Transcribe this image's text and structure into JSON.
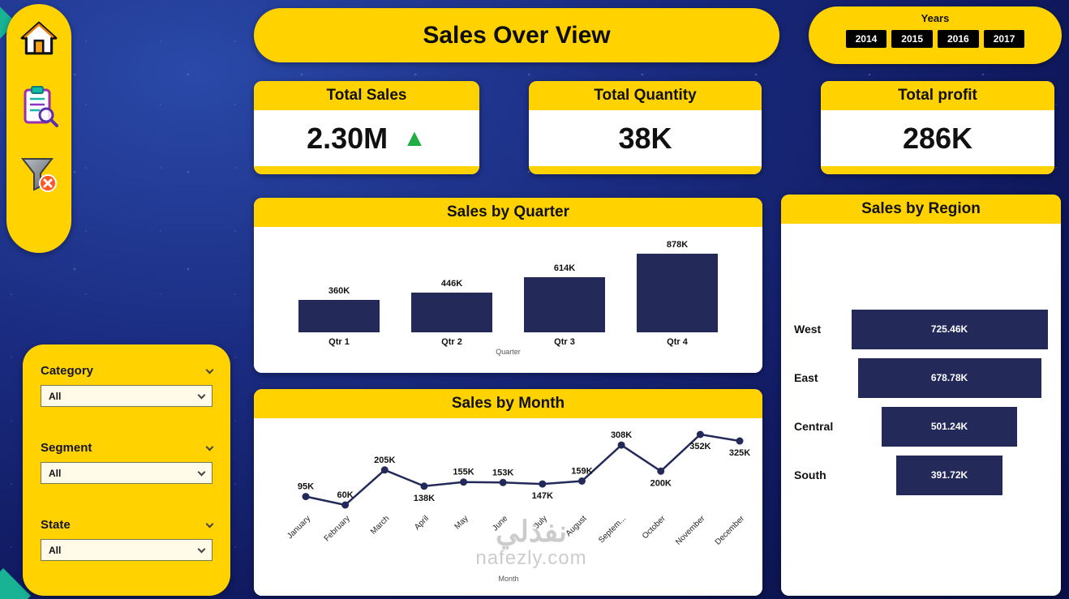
{
  "page": {
    "watermark": {
      "line1": "نفذلي",
      "line2": "nafezly.com"
    }
  },
  "header": {
    "title": "Sales Over View"
  },
  "sidebar": {
    "icons": [
      {
        "name": "home-icon"
      },
      {
        "name": "report-search-icon"
      },
      {
        "name": "clear-filter-icon"
      }
    ]
  },
  "years": {
    "label": "Years",
    "options": [
      "2014",
      "2015",
      "2016",
      "2017"
    ]
  },
  "kpis": [
    {
      "label": "Total Sales",
      "value": "2.30M",
      "trend": "up"
    },
    {
      "label": "Total Quantity",
      "value": "38K",
      "trend": ""
    },
    {
      "label": "Total profit",
      "value": "286K",
      "trend": ""
    }
  ],
  "slicers": {
    "items": [
      {
        "label": "Category",
        "value": "All"
      },
      {
        "label": "Segment",
        "value": "All"
      },
      {
        "label": "State",
        "value": "All"
      }
    ]
  },
  "chart_data": [
    {
      "type": "bar",
      "title": "Sales by Quarter",
      "categories": [
        "Qtr 1",
        "Qtr 2",
        "Qtr 3",
        "Qtr 4"
      ],
      "values": [
        360,
        446,
        614,
        878
      ],
      "value_labels": [
        "360K",
        "446K",
        "614K",
        "878K"
      ],
      "xlabel": "Quarter",
      "ylabel": "",
      "ylim": [
        0,
        900
      ],
      "bar_color": "#232a5a",
      "grid": false,
      "legend": "none"
    },
    {
      "type": "line",
      "title": "Sales by Month",
      "categories": [
        "January",
        "February",
        "March",
        "April",
        "May",
        "June",
        "July",
        "August",
        "Septem...",
        "October",
        "November",
        "December"
      ],
      "values": [
        95,
        60,
        205,
        138,
        155,
        153,
        147,
        159,
        308,
        200,
        352,
        325
      ],
      "value_labels": [
        "95K",
        "60K",
        "205K",
        "138K",
        "155K",
        "153K",
        "147K",
        "159K",
        "308K",
        "200K",
        "352K",
        "325K"
      ],
      "label_positions": [
        "above",
        "above",
        "above",
        "below",
        "above",
        "above",
        "below",
        "above",
        "above",
        "below",
        "below",
        "below"
      ],
      "xlabel": "Month",
      "ylabel": "",
      "ylim": [
        40,
        380
      ],
      "line_color": "#232a5a",
      "markers": true,
      "grid": false,
      "legend": "none"
    },
    {
      "type": "bar",
      "variant": "funnel",
      "orientation": "horizontal",
      "title": "Sales by Region",
      "categories": [
        "West",
        "East",
        "Central",
        "South"
      ],
      "values": [
        725.46,
        678.78,
        501.24,
        391.72
      ],
      "value_labels": [
        "725.46K",
        "678.78K",
        "501.24K",
        "391.72K"
      ],
      "bar_color": "#232a5a",
      "grid": false,
      "legend": "none"
    }
  ]
}
